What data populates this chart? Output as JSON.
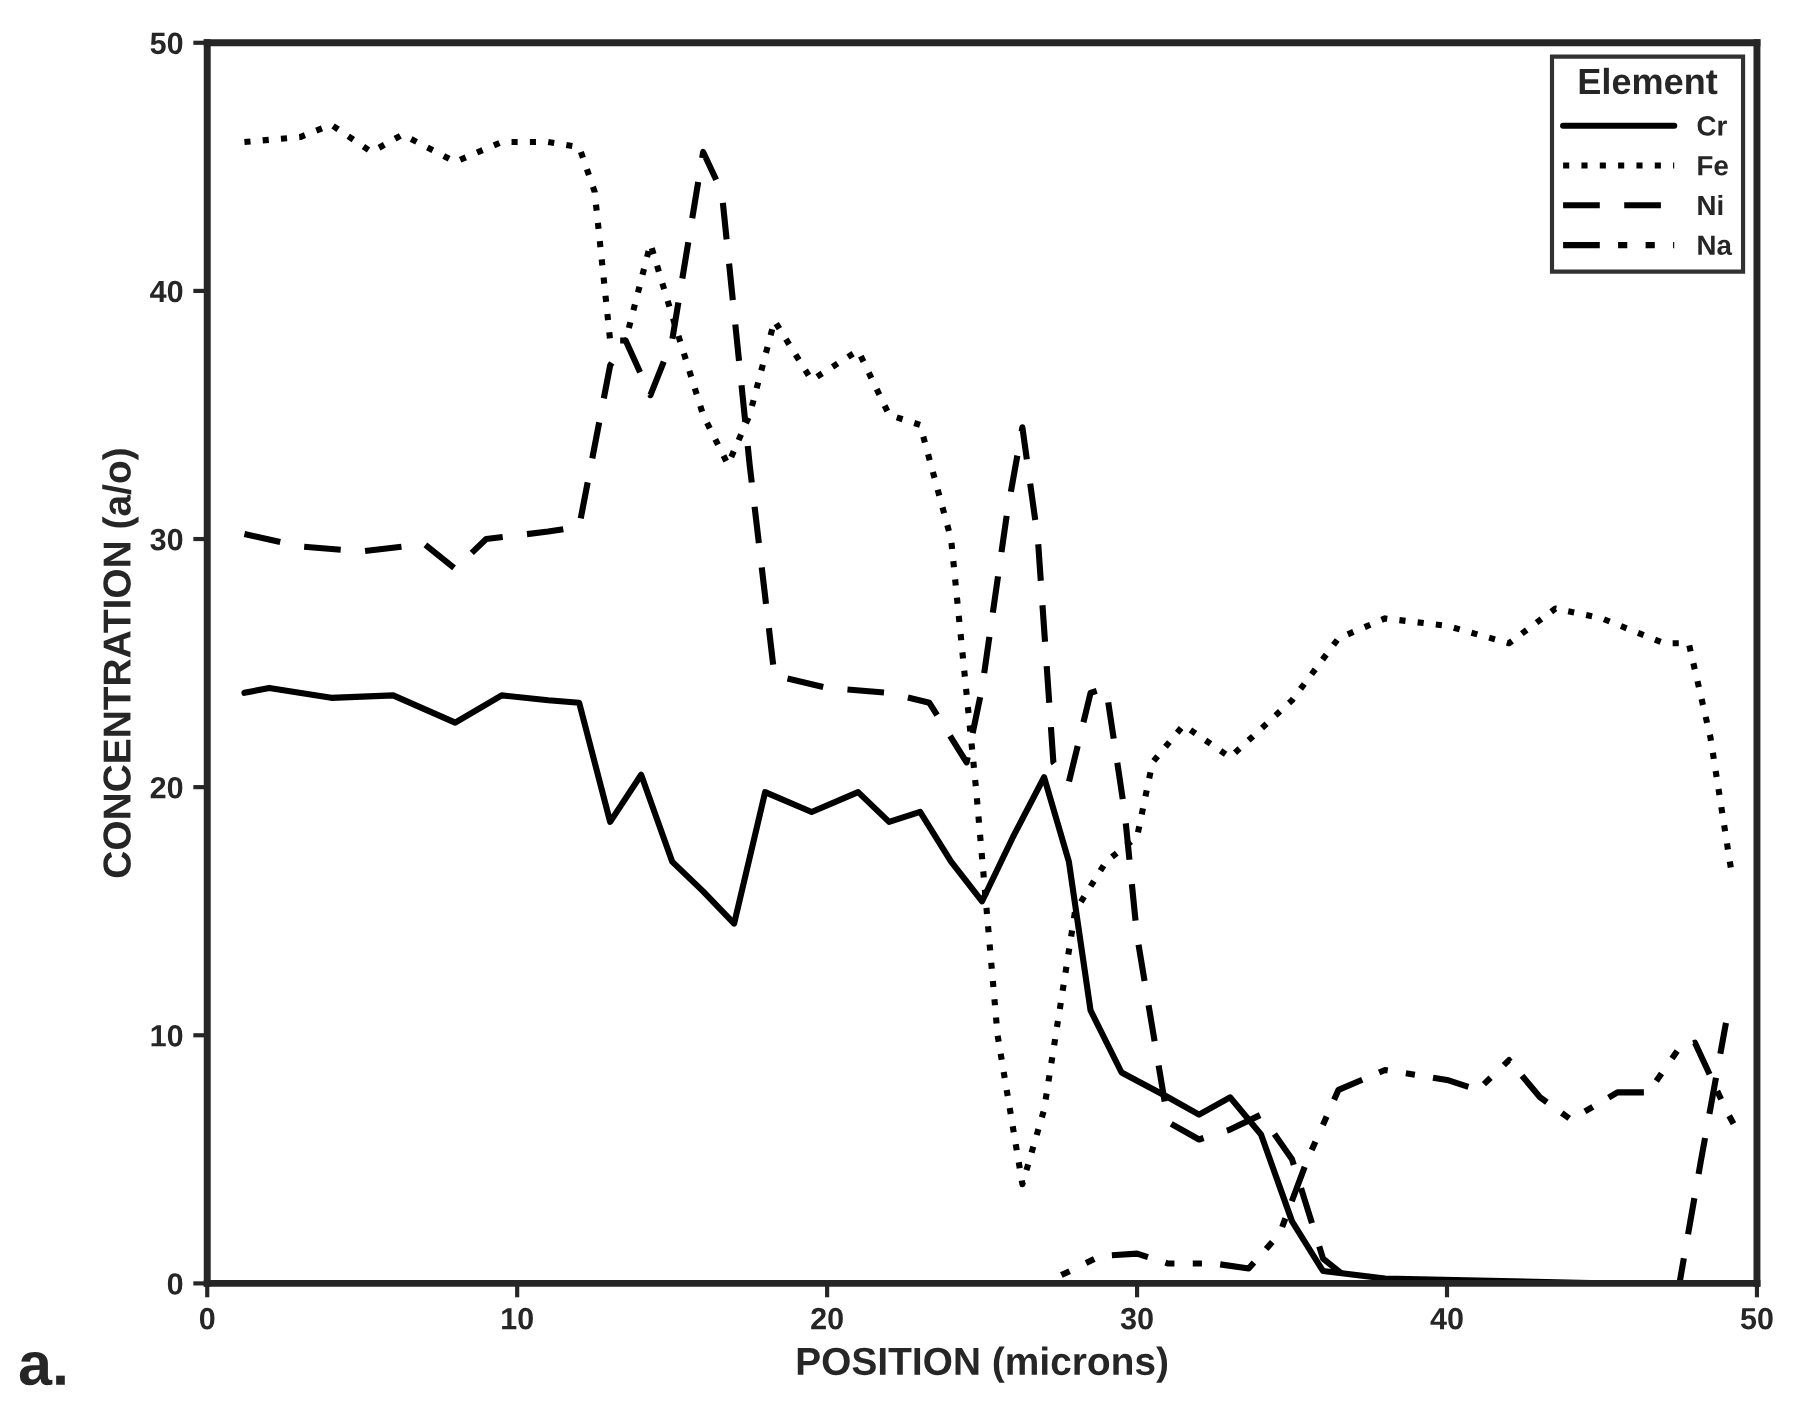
{
  "chart_data": {
    "type": "line",
    "xlabel": "POSITION (microns)",
    "ylabel": "CONCENTRATION (a/o)",
    "legend_title": "Element",
    "legend": "top right",
    "grid": false,
    "marker": "none",
    "xlim": [
      0,
      50
    ],
    "ylim": [
      0,
      50
    ],
    "xticks": [
      0,
      10,
      20,
      30,
      40,
      50
    ],
    "yticks": [
      0,
      10,
      20,
      30,
      40,
      50
    ],
    "annotations": [
      "a."
    ],
    "series": [
      {
        "name": "Cr",
        "color": "#000000",
        "line_style": "solid",
        "x": [
          1.2,
          2,
          4,
          6,
          8,
          9.5,
          11,
          12,
          13,
          14,
          15,
          16,
          17,
          18,
          19.5,
          21,
          22,
          23,
          24,
          25,
          26,
          27,
          27.8,
          28.5,
          29.5,
          31,
          32,
          33,
          34,
          35,
          36,
          38,
          45,
          49
        ],
        "values": [
          23.8,
          24,
          23.6,
          23.7,
          22.6,
          23.7,
          23.5,
          23.4,
          18.6,
          20.5,
          17,
          15.8,
          14.5,
          19.8,
          19,
          19.8,
          18.6,
          19,
          17,
          15.4,
          18,
          20.4,
          17,
          11,
          8.5,
          7.5,
          6.8,
          7.5,
          6,
          2.5,
          0.5,
          0.2,
          0,
          0
        ]
      },
      {
        "name": "Fe",
        "color": "#000000",
        "line_style": "dotted",
        "x": [
          1.2,
          3,
          4,
          5.3,
          6.3,
          8,
          9.5,
          11,
          12,
          12.5,
          13,
          13.5,
          14.3,
          15,
          16,
          16.8,
          17.5,
          18.3,
          19.5,
          21,
          22,
          23,
          24,
          24.8,
          25.5,
          26.3,
          27,
          28,
          29,
          30,
          30.5,
          31.5,
          33,
          35,
          36.5,
          38,
          40,
          42,
          43.5,
          45,
          47,
          47.8,
          48.5,
          49.2
        ],
        "values": [
          46,
          46.2,
          46.7,
          45.6,
          46.3,
          45.2,
          46,
          46,
          45.8,
          44,
          38,
          38,
          41.9,
          39,
          35,
          33,
          35,
          38.8,
          36.4,
          37.6,
          35,
          34.6,
          30,
          20,
          10,
          4,
          7,
          15,
          17,
          18,
          21,
          22.5,
          21.2,
          23.5,
          26,
          26.8,
          26.5,
          25.8,
          27.2,
          26.8,
          25.8,
          25.8,
          22,
          16.4
        ]
      },
      {
        "name": "Ni",
        "color": "#000000",
        "line_style": "dashed",
        "x": [
          1.2,
          3,
          5,
          7,
          8,
          9,
          11,
          12,
          13,
          13.5,
          14.3,
          15,
          16,
          16.6,
          17.5,
          18.3,
          20,
          22,
          23.3,
          24.5,
          25,
          25.8,
          26.3,
          26.8,
          27.3,
          27.8,
          28.5,
          29,
          29.6,
          30,
          31,
          32,
          33,
          34,
          35,
          36,
          37,
          47.5,
          48.2,
          49
        ],
        "values": [
          30.2,
          29.7,
          29.5,
          29.8,
          28.8,
          30,
          30.3,
          30.5,
          37,
          38,
          35.8,
          38,
          45.6,
          44,
          33,
          24.5,
          24,
          23.8,
          23.4,
          21,
          24,
          31,
          34.5,
          30,
          21,
          20.2,
          23.8,
          24,
          19,
          14,
          6.5,
          5.8,
          6.2,
          6.8,
          5,
          1,
          0,
          0,
          5,
          10.5
        ]
      },
      {
        "name": "Na",
        "color": "#000000",
        "line_style": "dashdot",
        "x": [
          1,
          27,
          28,
          28.8,
          30,
          31,
          32.5,
          33.6,
          34.6,
          35.5,
          36.5,
          38,
          40,
          41,
          42,
          43,
          44,
          45.5,
          46.5,
          47.5,
          48,
          49,
          49.3
        ],
        "values": [
          0,
          0,
          0.6,
          1.1,
          1.2,
          0.8,
          0.8,
          0.6,
          2,
          5,
          7.8,
          8.6,
          8.2,
          7.8,
          9,
          7.5,
          6.6,
          7.7,
          7.7,
          9.5,
          9.7,
          7,
          6.3
        ]
      }
    ]
  }
}
